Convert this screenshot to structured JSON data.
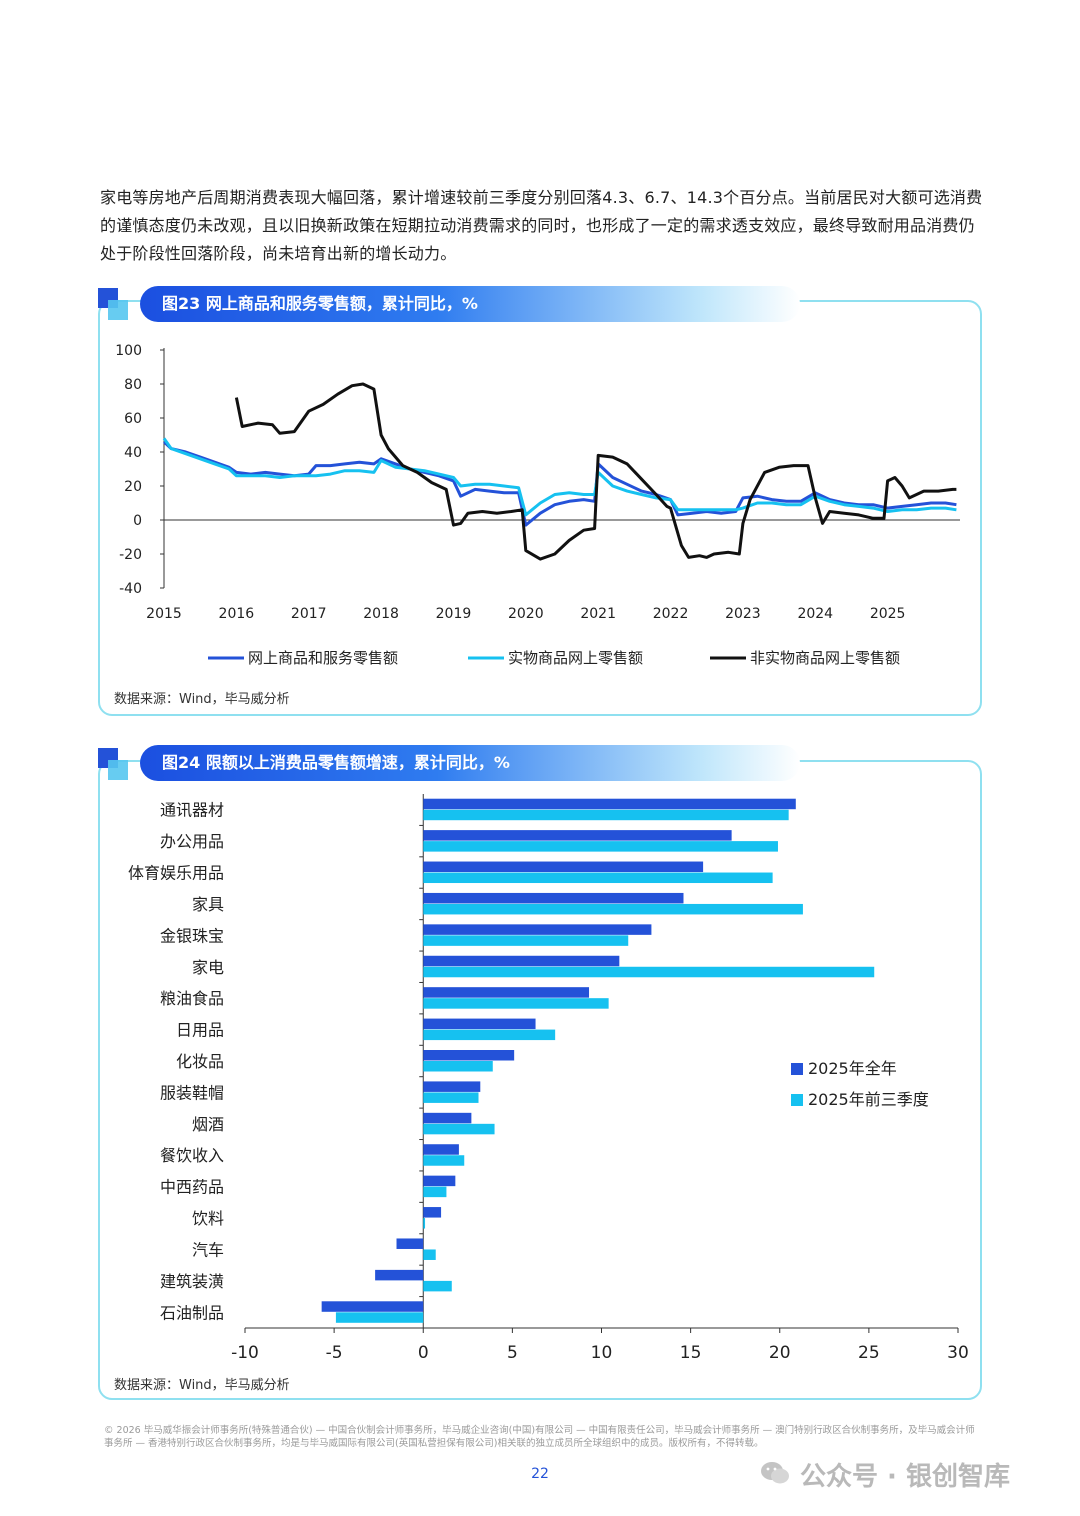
{
  "paragraph": "家电等房地产后周期消费表现大幅回落，累计增速较前三季度分别回落4.3、6.7、14.3个百分点。当前居民对大额可选消费的谨慎态度仍未改观，且以旧换新政策在短期拉动消费需求的同时，也形成了一定的需求透支效应，最终导致耐用品消费仍处于阶段性回落阶段，尚未培育出新的增长动力。",
  "figure1": {
    "title": "图23 网上商品和服务零售额，累计同比，%",
    "source": "数据来源：Wind，毕马威分析"
  },
  "figure2": {
    "title": "图24 限额以上消费品零售额增速，累计同比，%",
    "source": "数据来源：Wind，毕马威分析"
  },
  "footer_text": "© 2026 毕马威华振会计师事务所(特殊普通合伙) — 中国合伙制会计师事务所，毕马威企业咨询(中国)有限公司 — 中国有限责任公司，毕马威会计师事务所 — 澳门特别行政区合伙制事务所，及毕马威会计师事务所 — 香港特别行政区合伙制事务所，均是与毕马威国际有限公司(英国私营担保有限公司)相关联的独立成员所全球组织中的成员。版权所有，不得转载。",
  "page_number": "22",
  "watermark": "公众号 · 银创智库",
  "colors": {
    "series_dark": "#2452d8",
    "series_light": "#16c1f0",
    "series_black": "#111111",
    "accent": "#2452d8"
  },
  "chart_data": [
    {
      "type": "line",
      "ylim": [
        -40,
        100
      ],
      "yticks": [
        "100",
        "80",
        "60",
        "40",
        "20",
        "0",
        "-20",
        "-40"
      ],
      "xticks": [
        "2015",
        "2016",
        "2017",
        "2018",
        "2019",
        "2020",
        "2021",
        "2022",
        "2023",
        "2024",
        "2025"
      ],
      "xlim": [
        2015,
        2026
      ],
      "series": [
        {
          "name": "网上商品和服务零售额",
          "color": "#2452d8",
          "points": [
            [
              2015.0,
              46
            ],
            [
              2015.1,
              42
            ],
            [
              2015.3,
              40
            ],
            [
              2015.5,
              37
            ],
            [
              2015.7,
              34
            ],
            [
              2015.9,
              31
            ],
            [
              2016.0,
              28
            ],
            [
              2016.2,
              27
            ],
            [
              2016.4,
              28
            ],
            [
              2016.6,
              27
            ],
            [
              2016.8,
              26
            ],
            [
              2017.0,
              27
            ],
            [
              2017.1,
              32
            ],
            [
              2017.3,
              32
            ],
            [
              2017.5,
              33
            ],
            [
              2017.7,
              34
            ],
            [
              2017.9,
              33
            ],
            [
              2018.0,
              36
            ],
            [
              2018.2,
              33
            ],
            [
              2018.4,
              30
            ],
            [
              2018.6,
              28
            ],
            [
              2018.8,
              26
            ],
            [
              2019.0,
              23
            ],
            [
              2019.1,
              14
            ],
            [
              2019.3,
              18
            ],
            [
              2019.5,
              17
            ],
            [
              2019.7,
              16
            ],
            [
              2019.9,
              16
            ],
            [
              2020.0,
              -3
            ],
            [
              2020.2,
              4
            ],
            [
              2020.4,
              9
            ],
            [
              2020.6,
              11
            ],
            [
              2020.8,
              12
            ],
            [
              2020.95,
              11
            ],
            [
              2021.0,
              33
            ],
            [
              2021.2,
              25
            ],
            [
              2021.4,
              21
            ],
            [
              2021.6,
              17
            ],
            [
              2021.8,
              15
            ],
            [
              2022.0,
              12
            ],
            [
              2022.1,
              3
            ],
            [
              2022.3,
              4
            ],
            [
              2022.5,
              5
            ],
            [
              2022.7,
              4
            ],
            [
              2022.9,
              5
            ],
            [
              2023.0,
              13
            ],
            [
              2023.2,
              14
            ],
            [
              2023.4,
              12
            ],
            [
              2023.6,
              11
            ],
            [
              2023.8,
              11
            ],
            [
              2024.0,
              16
            ],
            [
              2024.2,
              12
            ],
            [
              2024.4,
              10
            ],
            [
              2024.6,
              9
            ],
            [
              2024.8,
              9
            ],
            [
              2025.0,
              7
            ],
            [
              2025.2,
              8
            ],
            [
              2025.4,
              9
            ],
            [
              2025.6,
              10
            ],
            [
              2025.8,
              10
            ],
            [
              2025.95,
              9
            ]
          ]
        },
        {
          "name": "实物商品网上零售额",
          "color": "#16c1f0",
          "points": [
            [
              2015.0,
              48
            ],
            [
              2015.1,
              42
            ],
            [
              2015.3,
              39
            ],
            [
              2015.5,
              36
            ],
            [
              2015.7,
              33
            ],
            [
              2015.9,
              30
            ],
            [
              2016.0,
              26
            ],
            [
              2016.2,
              26
            ],
            [
              2016.4,
              26
            ],
            [
              2016.6,
              25
            ],
            [
              2016.8,
              26
            ],
            [
              2017.0,
              26
            ],
            [
              2017.1,
              26
            ],
            [
              2017.3,
              27
            ],
            [
              2017.5,
              29
            ],
            [
              2017.7,
              29
            ],
            [
              2017.9,
              28
            ],
            [
              2018.0,
              35
            ],
            [
              2018.2,
              31
            ],
            [
              2018.4,
              30
            ],
            [
              2018.6,
              29
            ],
            [
              2018.8,
              27
            ],
            [
              2019.0,
              25
            ],
            [
              2019.1,
              20
            ],
            [
              2019.3,
              21
            ],
            [
              2019.5,
              21
            ],
            [
              2019.7,
              20
            ],
            [
              2019.9,
              19
            ],
            [
              2020.0,
              3
            ],
            [
              2020.2,
              10
            ],
            [
              2020.4,
              15
            ],
            [
              2020.6,
              16
            ],
            [
              2020.8,
              15
            ],
            [
              2020.95,
              15
            ],
            [
              2021.0,
              28
            ],
            [
              2021.2,
              20
            ],
            [
              2021.4,
              17
            ],
            [
              2021.6,
              15
            ],
            [
              2021.8,
              13
            ],
            [
              2022.0,
              12
            ],
            [
              2022.1,
              6
            ],
            [
              2022.3,
              6
            ],
            [
              2022.5,
              6
            ],
            [
              2022.7,
              6
            ],
            [
              2022.9,
              6
            ],
            [
              2023.0,
              7
            ],
            [
              2023.2,
              10
            ],
            [
              2023.4,
              10
            ],
            [
              2023.6,
              9
            ],
            [
              2023.8,
              9
            ],
            [
              2024.0,
              14
            ],
            [
              2024.2,
              11
            ],
            [
              2024.4,
              9
            ],
            [
              2024.6,
              8
            ],
            [
              2024.8,
              7
            ],
            [
              2025.0,
              5
            ],
            [
              2025.2,
              6
            ],
            [
              2025.4,
              6
            ],
            [
              2025.6,
              7
            ],
            [
              2025.8,
              7
            ],
            [
              2025.95,
              6
            ]
          ]
        },
        {
          "name": "非实物商品网上零售额",
          "color": "#111111",
          "points": [
            [
              2016.0,
              72
            ],
            [
              2016.08,
              55
            ],
            [
              2016.3,
              57
            ],
            [
              2016.5,
              56
            ],
            [
              2016.6,
              51
            ],
            [
              2016.8,
              52
            ],
            [
              2017.0,
              64
            ],
            [
              2017.2,
              68
            ],
            [
              2017.4,
              74
            ],
            [
              2017.6,
              79
            ],
            [
              2017.75,
              80
            ],
            [
              2017.9,
              77
            ],
            [
              2018.0,
              50
            ],
            [
              2018.1,
              42
            ],
            [
              2018.3,
              32
            ],
            [
              2018.5,
              28
            ],
            [
              2018.7,
              22
            ],
            [
              2018.9,
              18
            ],
            [
              2019.0,
              -3
            ],
            [
              2019.1,
              -2
            ],
            [
              2019.2,
              4
            ],
            [
              2019.4,
              5
            ],
            [
              2019.6,
              4
            ],
            [
              2019.8,
              5
            ],
            [
              2019.95,
              6
            ],
            [
              2020.0,
              -18
            ],
            [
              2020.2,
              -23
            ],
            [
              2020.4,
              -20
            ],
            [
              2020.6,
              -12
            ],
            [
              2020.8,
              -6
            ],
            [
              2020.95,
              -5
            ],
            [
              2021.0,
              38
            ],
            [
              2021.2,
              37
            ],
            [
              2021.4,
              33
            ],
            [
              2021.6,
              24
            ],
            [
              2021.8,
              15
            ],
            [
              2021.95,
              8
            ],
            [
              2022.0,
              7
            ],
            [
              2022.15,
              -15
            ],
            [
              2022.25,
              -22
            ],
            [
              2022.4,
              -21
            ],
            [
              2022.5,
              -22
            ],
            [
              2022.6,
              -20
            ],
            [
              2022.8,
              -19
            ],
            [
              2022.95,
              -20
            ],
            [
              2023.0,
              -2
            ],
            [
              2023.1,
              12
            ],
            [
              2023.3,
              28
            ],
            [
              2023.5,
              31
            ],
            [
              2023.7,
              32
            ],
            [
              2023.9,
              32
            ],
            [
              2024.0,
              13
            ],
            [
              2024.1,
              -2
            ],
            [
              2024.2,
              5
            ],
            [
              2024.4,
              4
            ],
            [
              2024.6,
              3
            ],
            [
              2024.8,
              1
            ],
            [
              2024.95,
              1
            ],
            [
              2025.0,
              23
            ],
            [
              2025.1,
              25
            ],
            [
              2025.2,
              20
            ],
            [
              2025.3,
              13
            ],
            [
              2025.5,
              17
            ],
            [
              2025.7,
              17
            ],
            [
              2025.9,
              18
            ],
            [
              2025.95,
              18
            ]
          ]
        }
      ]
    },
    {
      "type": "bar",
      "orientation": "horizontal",
      "xlim": [
        -10,
        30
      ],
      "xticks": [
        "-10",
        "-5",
        "0",
        "5",
        "10",
        "15",
        "20",
        "25",
        "30"
      ],
      "categories": [
        "通讯器材",
        "办公用品",
        "体育娱乐用品",
        "家具",
        "金银珠宝",
        "家电",
        "粮油食品",
        "日用品",
        "化妆品",
        "服装鞋帽",
        "烟酒",
        "餐饮收入",
        "中西药品",
        "饮料",
        "汽车",
        "建筑装潢",
        "石油制品"
      ],
      "series": [
        {
          "name": "2025年全年",
          "color": "#2452d8",
          "values": [
            20.9,
            17.3,
            15.7,
            14.6,
            12.8,
            11.0,
            9.3,
            6.3,
            5.1,
            3.2,
            2.7,
            2.0,
            1.8,
            1.0,
            -1.5,
            -2.7,
            -5.7
          ]
        },
        {
          "name": "2025年前三季度",
          "color": "#16c1f0",
          "values": [
            20.5,
            19.9,
            19.6,
            21.3,
            11.5,
            25.3,
            10.4,
            7.4,
            3.9,
            3.1,
            4.0,
            2.3,
            1.3,
            0.1,
            0.7,
            1.6,
            -4.9
          ]
        }
      ],
      "legend_position": "right"
    }
  ]
}
